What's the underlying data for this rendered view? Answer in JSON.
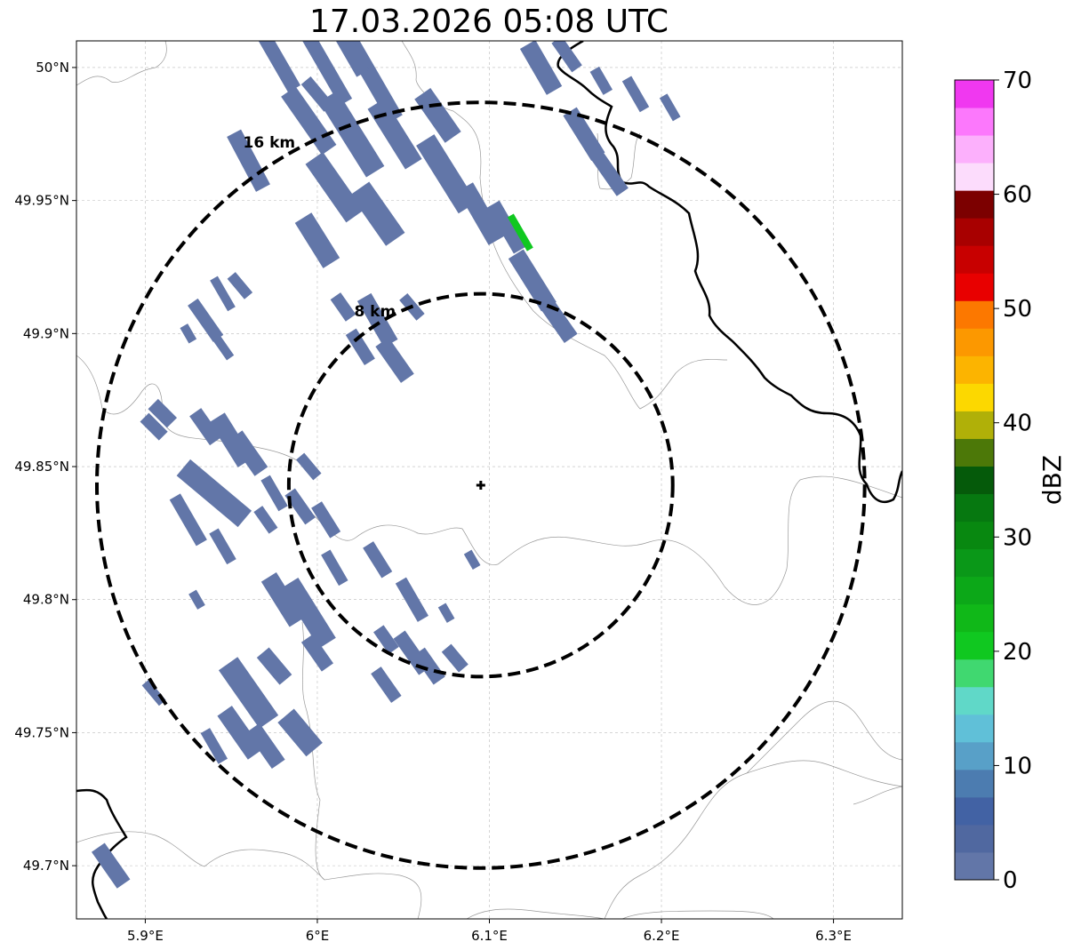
{
  "title": "17.03.2026 05:08 UTC",
  "map": {
    "lon_range": [
      5.86,
      6.34
    ],
    "lat_range": [
      49.68,
      50.01
    ],
    "lon_ticks": [
      {
        "value": 5.9,
        "label": "5.9°E"
      },
      {
        "value": 6.0,
        "label": "6°E"
      },
      {
        "value": 6.1,
        "label": "6.1°E"
      },
      {
        "value": 6.2,
        "label": "6.2°E"
      },
      {
        "value": 6.3,
        "label": "6.3°E"
      }
    ],
    "lat_ticks": [
      {
        "value": 50.0,
        "label": "50°N"
      },
      {
        "value": 49.95,
        "label": "49.95°N"
      },
      {
        "value": 49.9,
        "label": "49.9°N"
      },
      {
        "value": 49.85,
        "label": "49.85°N"
      },
      {
        "value": 49.8,
        "label": "49.8°N"
      },
      {
        "value": 49.75,
        "label": "49.75°N"
      },
      {
        "value": 49.7,
        "label": "49.7°N"
      }
    ],
    "radar_site": {
      "lon": 6.095,
      "lat": 49.843
    },
    "rings": [
      {
        "label": "8 km",
        "radius_km": 8
      },
      {
        "label": "16 km",
        "radius_km": 16
      }
    ],
    "gridlines": true
  },
  "colorbar": {
    "label": "dBZ",
    "ticks": [
      "0",
      "10",
      "20",
      "30",
      "40",
      "50",
      "60",
      "70"
    ],
    "colors": [
      "#6276a8",
      "#5068a0",
      "#4262a4",
      "#4c7cb0",
      "#58a0c8",
      "#60c0d8",
      "#60d8c8",
      "#40d870",
      "#10c820",
      "#10b818",
      "#0ca818",
      "#0a9818",
      "#088810",
      "#067810",
      "#055a0a",
      "#4c7808",
      "#b0b008",
      "#fcd800",
      "#fcb400",
      "#fc9800",
      "#fc7800",
      "#e80000",
      "#c80000",
      "#a80000",
      "#7c0000",
      "#fcdcfc",
      "#fcb0fc",
      "#fc78fc",
      "#f038f0"
    ]
  },
  "echo_color": "#6276a8",
  "strong_echo_color": "#10c820"
}
